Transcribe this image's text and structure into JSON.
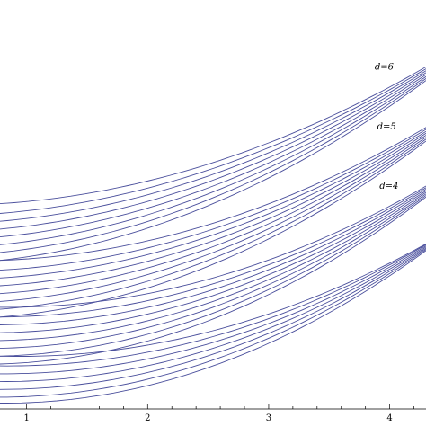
{
  "chart_data": {
    "type": "line",
    "title": "",
    "xlabel": "",
    "ylabel": "",
    "xlim": [
      0.78,
      4.3
    ],
    "ylim": [
      0,
      10
    ],
    "grid": false,
    "colors": {
      "curves": "#4a4f9c",
      "axis": "#000000"
    },
    "x_ticks": [
      {
        "value": 1,
        "label": "1"
      },
      {
        "value": 2,
        "label": "2"
      },
      {
        "value": 3,
        "label": "3"
      },
      {
        "value": 4,
        "label": "4"
      }
    ],
    "groups": [
      {
        "label": "d=6",
        "annotation_x": 3.98,
        "annotation_y": 8.72,
        "curves": [
          {
            "x": [
              0.78,
              4.3
            ],
            "start": 5.25,
            "end": 8.75,
            "mid": 6.3
          },
          {
            "x": [
              0.78,
              4.3
            ],
            "start": 5.0,
            "end": 8.7,
            "mid": 6.15
          },
          {
            "x": [
              0.78,
              4.3
            ],
            "start": 4.8,
            "end": 8.65,
            "mid": 6.0
          },
          {
            "x": [
              0.78,
              4.3
            ],
            "start": 4.6,
            "end": 8.6,
            "mid": 5.85
          },
          {
            "x": [
              0.78,
              4.3
            ],
            "start": 4.4,
            "end": 8.55,
            "mid": 5.7
          },
          {
            "x": [
              0.78,
              4.3
            ],
            "start": 4.2,
            "end": 8.5,
            "mid": 5.55
          },
          {
            "x": [
              0.78,
              4.3
            ],
            "start": 4.0,
            "end": 8.45,
            "mid": 5.4
          },
          {
            "x": [
              0.78,
              4.3
            ],
            "start": 3.8,
            "end": 8.4,
            "mid": 5.25
          }
        ]
      },
      {
        "label": "d=5",
        "annotation_x": 4.0,
        "annotation_y": 7.2,
        "curves": [
          {
            "x": [
              0.78,
              4.3
            ],
            "start": 3.8,
            "end": 7.2,
            "mid": 4.75
          },
          {
            "x": [
              0.78,
              4.3
            ],
            "start": 3.55,
            "end": 7.15,
            "mid": 4.6
          },
          {
            "x": [
              0.78,
              4.3
            ],
            "start": 3.35,
            "end": 7.1,
            "mid": 4.45
          },
          {
            "x": [
              0.78,
              4.3
            ],
            "start": 3.15,
            "end": 7.05,
            "mid": 4.3
          },
          {
            "x": [
              0.78,
              4.3
            ],
            "start": 2.95,
            "end": 7.0,
            "mid": 4.15
          },
          {
            "x": [
              0.78,
              4.3
            ],
            "start": 2.75,
            "end": 6.95,
            "mid": 4.0
          },
          {
            "x": [
              0.78,
              4.3
            ],
            "start": 2.55,
            "end": 6.9,
            "mid": 3.85
          },
          {
            "x": [
              0.78,
              4.3
            ],
            "start": 2.35,
            "end": 6.85,
            "mid": 3.7
          }
        ]
      },
      {
        "label": "d=4",
        "annotation_x": 4.02,
        "annotation_y": 5.68,
        "curves": [
          {
            "x": [
              0.78,
              4.3
            ],
            "start": 2.6,
            "end": 5.7,
            "mid": 3.35
          },
          {
            "x": [
              0.78,
              4.3
            ],
            "start": 2.35,
            "end": 5.66,
            "mid": 3.2
          },
          {
            "x": [
              0.78,
              4.3
            ],
            "start": 2.15,
            "end": 5.62,
            "mid": 3.05
          },
          {
            "x": [
              0.78,
              4.3
            ],
            "start": 1.95,
            "end": 5.58,
            "mid": 2.9
          },
          {
            "x": [
              0.78,
              4.3
            ],
            "start": 1.75,
            "end": 5.54,
            "mid": 2.75
          },
          {
            "x": [
              0.78,
              4.3
            ],
            "start": 1.55,
            "end": 5.5,
            "mid": 2.6
          },
          {
            "x": [
              0.78,
              4.3
            ],
            "start": 1.35,
            "end": 5.46,
            "mid": 2.45
          },
          {
            "x": [
              0.78,
              4.3
            ],
            "start": 1.15,
            "end": 5.42,
            "mid": 2.3
          }
        ]
      },
      {
        "label": "",
        "annotation_x": null,
        "annotation_y": null,
        "curves": [
          {
            "x": [
              0.78,
              4.3
            ],
            "start": 1.35,
            "end": 4.22,
            "mid": 2.0
          },
          {
            "x": [
              0.78,
              4.3
            ],
            "start": 1.1,
            "end": 4.2,
            "mid": 1.85
          },
          {
            "x": [
              0.78,
              4.3
            ],
            "start": 0.9,
            "end": 4.17,
            "mid": 1.7
          },
          {
            "x": [
              0.78,
              4.3
            ],
            "start": 0.7,
            "end": 4.14,
            "mid": 1.55
          },
          {
            "x": [
              0.78,
              4.3
            ],
            "start": 0.5,
            "end": 4.11,
            "mid": 1.4
          },
          {
            "x": [
              0.78,
              4.3
            ],
            "start": 0.3,
            "end": 4.08,
            "mid": 1.25
          },
          {
            "x": [
              0.78,
              4.3
            ],
            "start": 0.15,
            "end": 4.05,
            "mid": 1.1
          }
        ]
      }
    ]
  }
}
